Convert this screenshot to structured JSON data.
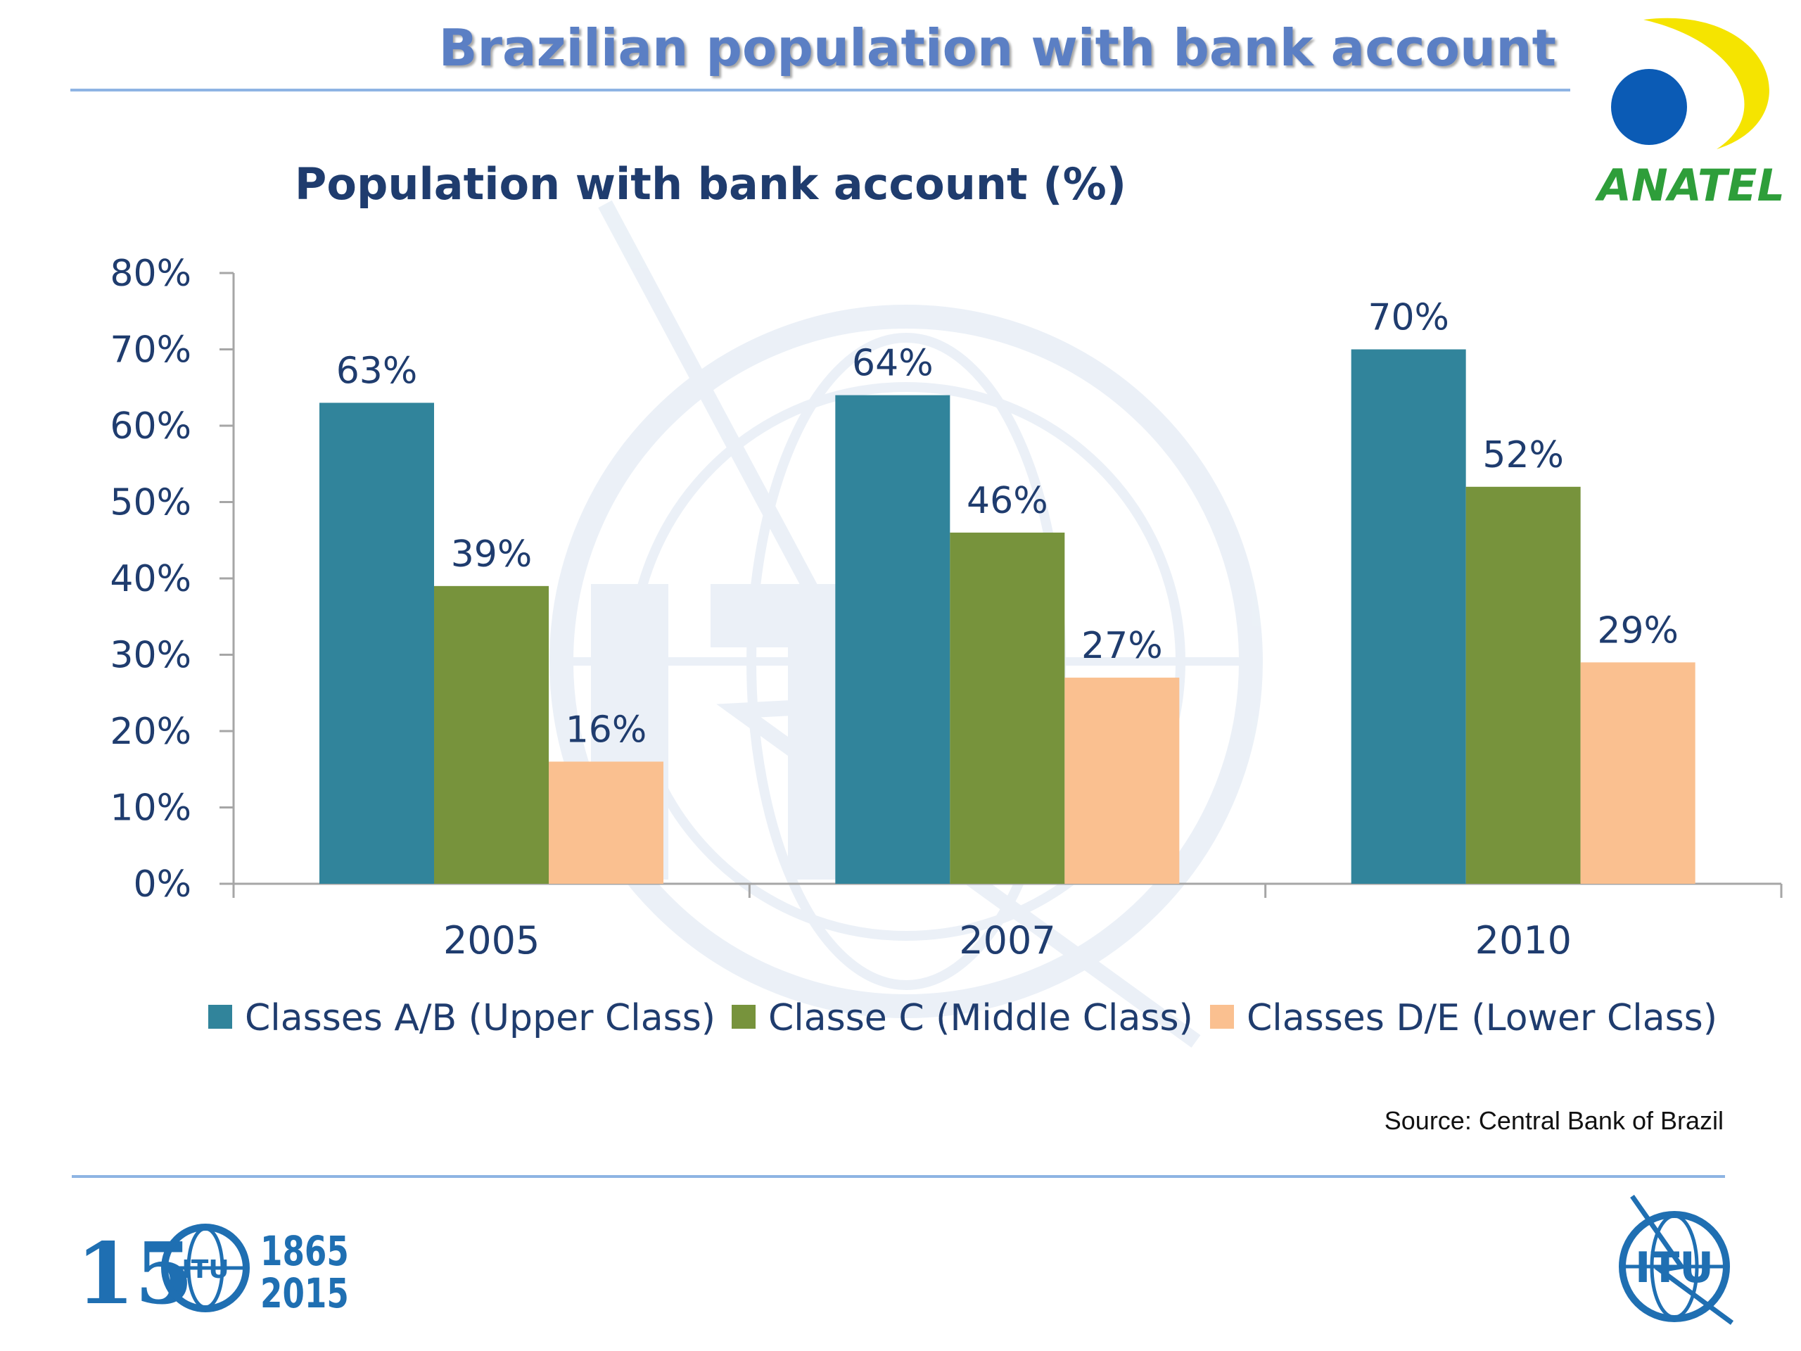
{
  "header": {
    "title": "Brazilian population with bank account",
    "logo_text": "ANATEL"
  },
  "footer": {
    "source": "Source: Central Bank of Brazil",
    "anniversary_number": "15",
    "anniversary_years": [
      "1865",
      "2015"
    ],
    "itu_logo_text": "ITU"
  },
  "colors": {
    "series": [
      "#31849b",
      "#77933c",
      "#fac090"
    ],
    "axis": "#a6a6a6",
    "title_blue": "#1f3c6e",
    "text_blue": "#1f3c6e",
    "header_blue": "#5b7fc4",
    "rule_blue": "#8eb4e3",
    "watermark": "#dbe5f1"
  },
  "chart_data": {
    "type": "bar",
    "title": "Population with bank account (%)",
    "xlabel": "",
    "ylabel": "",
    "categories": [
      "2005",
      "2007",
      "2010"
    ],
    "series": [
      {
        "name": "Classes A/B (Upper Class)",
        "values": [
          63,
          64,
          70
        ],
        "labels": [
          "63%",
          "64%",
          "70%"
        ]
      },
      {
        "name": "Classe C (Middle Class)",
        "values": [
          39,
          46,
          52
        ],
        "labels": [
          "39%",
          "46%",
          "52%"
        ]
      },
      {
        "name": "Classes D/E (Lower Class)",
        "values": [
          16,
          27,
          29
        ],
        "labels": [
          "16%",
          "27%",
          "29%"
        ]
      }
    ],
    "ylim": [
      0,
      80
    ],
    "yticks": [
      0,
      10,
      20,
      30,
      40,
      50,
      60,
      70,
      80
    ],
    "ytick_labels": [
      "0%",
      "10%",
      "20%",
      "30%",
      "40%",
      "50%",
      "60%",
      "70%",
      "80%"
    ],
    "grid": false,
    "legend": "bottom"
  }
}
